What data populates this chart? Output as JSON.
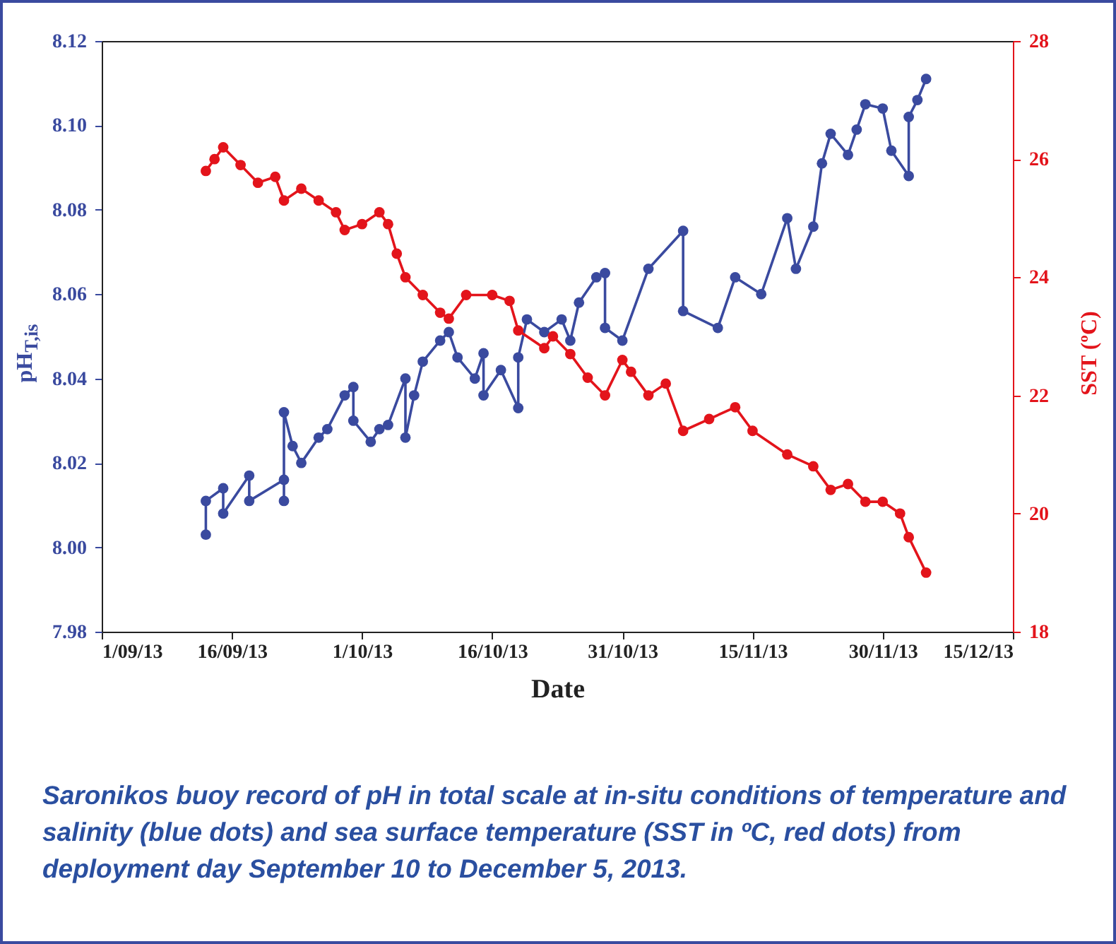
{
  "chart_data": {
    "type": "line",
    "xlabel": "Date",
    "ylabel": "pH$_{T,is}$",
    "y2label": "SST (ºC)",
    "marker": "circle",
    "annotations": [
      "Saronikos buoy record of pH in total scale at in-situ conditions of temperature and salinity (blue dots) and sea surface temperature (SST in ºC, red dots) from deployment day September 10 to December 5, 2013."
    ],
    "xlim": [
      "2013-09-01",
      "2013-12-15"
    ],
    "xticks": [
      {
        "value": "2013-09-01",
        "label": "1/09/13"
      },
      {
        "value": "2013-09-16",
        "label": "16/09/13"
      },
      {
        "value": "2013-10-01",
        "label": "1/10/13"
      },
      {
        "value": "2013-10-16",
        "label": "16/10/13"
      },
      {
        "value": "2013-10-31",
        "label": "31/10/13"
      },
      {
        "value": "2013-11-15",
        "label": "15/11/13"
      },
      {
        "value": "2013-11-30",
        "label": "30/11/13"
      },
      {
        "value": "2013-12-15",
        "label": "15/12/13"
      }
    ],
    "ylim": [
      7.98,
      8.12
    ],
    "yticks": [
      7.98,
      {
        "value": 8,
        "label": "8.00"
      },
      8.02,
      8.04,
      8.06,
      8.08,
      {
        "value": 8.1,
        "label": "8.10"
      },
      8.12
    ],
    "y2lim": [
      18,
      28
    ],
    "y2ticks": [
      18,
      20,
      22,
      24,
      26,
      28
    ],
    "series": [
      {
        "color": "#3a4a9f",
        "x": [
          "2013-09-13",
          "2013-09-13",
          "2013-09-15",
          "2013-09-15",
          "2013-09-18",
          "2013-09-18",
          "2013-09-22",
          "2013-09-22",
          "2013-09-22",
          "2013-09-23",
          "2013-09-24",
          "2013-09-26",
          "2013-09-27",
          "2013-09-29",
          "2013-09-30",
          "2013-09-30",
          "2013-10-02",
          "2013-10-03",
          "2013-10-04",
          "2013-10-06",
          "2013-10-06",
          "2013-10-07",
          "2013-10-08",
          "2013-10-10",
          "2013-10-11",
          "2013-10-12",
          "2013-10-14",
          "2013-10-15",
          "2013-10-15",
          "2013-10-17",
          "2013-10-19",
          "2013-10-19",
          "2013-10-20",
          "2013-10-22",
          "2013-10-24",
          "2013-10-25",
          "2013-10-26",
          "2013-10-28",
          "2013-10-29",
          "2013-10-29",
          "2013-10-31",
          "2013-11-03",
          "2013-11-07",
          "2013-11-07",
          "2013-11-11",
          "2013-11-13",
          "2013-11-16",
          "2013-11-19",
          "2013-11-20",
          "2013-11-22",
          "2013-11-23",
          "2013-11-24",
          "2013-11-26",
          "2013-11-27",
          "2013-11-28",
          "2013-11-30",
          "2013-12-01",
          "2013-12-03",
          "2013-12-03",
          "2013-12-04",
          "2013-12-05"
        ],
        "values": [
          8.003,
          8.011,
          8.014,
          8.008,
          8.017,
          8.011,
          8.016,
          8.011,
          8.032,
          8.024,
          8.02,
          8.026,
          8.028,
          8.036,
          8.038,
          8.03,
          8.025,
          8.028,
          8.029,
          8.04,
          8.026,
          8.036,
          8.044,
          8.049,
          8.051,
          8.045,
          8.04,
          8.046,
          8.036,
          8.042,
          8.033,
          8.045,
          8.054,
          8.051,
          8.054,
          8.049,
          8.058,
          8.064,
          8.065,
          8.052,
          8.049,
          8.066,
          8.075,
          8.056,
          8.052,
          8.064,
          8.06,
          8.078,
          8.066,
          8.076,
          8.091,
          8.098,
          8.093,
          8.099,
          8.105,
          8.104,
          8.094,
          8.088,
          8.102,
          8.106,
          8.111
        ]
      },
      {
        "color": "#e3141b",
        "axis": "y2",
        "x": [
          "2013-09-13",
          "2013-09-14",
          "2013-09-15",
          "2013-09-17",
          "2013-09-19",
          "2013-09-21",
          "2013-09-22",
          "2013-09-24",
          "2013-09-26",
          "2013-09-28",
          "2013-09-29",
          "2013-10-01",
          "2013-10-03",
          "2013-10-04",
          "2013-10-05",
          "2013-10-06",
          "2013-10-08",
          "2013-10-10",
          "2013-10-11",
          "2013-10-13",
          "2013-10-16",
          "2013-10-18",
          "2013-10-19",
          "2013-10-22",
          "2013-10-23",
          "2013-10-25",
          "2013-10-27",
          "2013-10-29",
          "2013-10-31",
          "2013-11-01",
          "2013-11-03",
          "2013-11-05",
          "2013-11-07",
          "2013-11-10",
          "2013-11-13",
          "2013-11-15",
          "2013-11-19",
          "2013-11-22",
          "2013-11-24",
          "2013-11-26",
          "2013-11-28",
          "2013-11-30",
          "2013-12-02",
          "2013-12-03",
          "2013-12-05"
        ],
        "values": [
          25.8,
          26.0,
          26.2,
          25.9,
          25.6,
          25.7,
          25.3,
          25.5,
          25.3,
          25.1,
          24.8,
          24.9,
          25.1,
          24.9,
          24.4,
          24.0,
          23.7,
          23.4,
          23.3,
          23.7,
          23.7,
          23.6,
          23.1,
          22.8,
          23.0,
          22.7,
          22.3,
          22.0,
          22.6,
          22.4,
          22.0,
          22.2,
          21.4,
          21.6,
          21.8,
          21.4,
          21.0,
          20.8,
          20.4,
          20.5,
          20.2,
          20.2,
          20.0,
          19.6,
          19.0
        ]
      }
    ]
  }
}
